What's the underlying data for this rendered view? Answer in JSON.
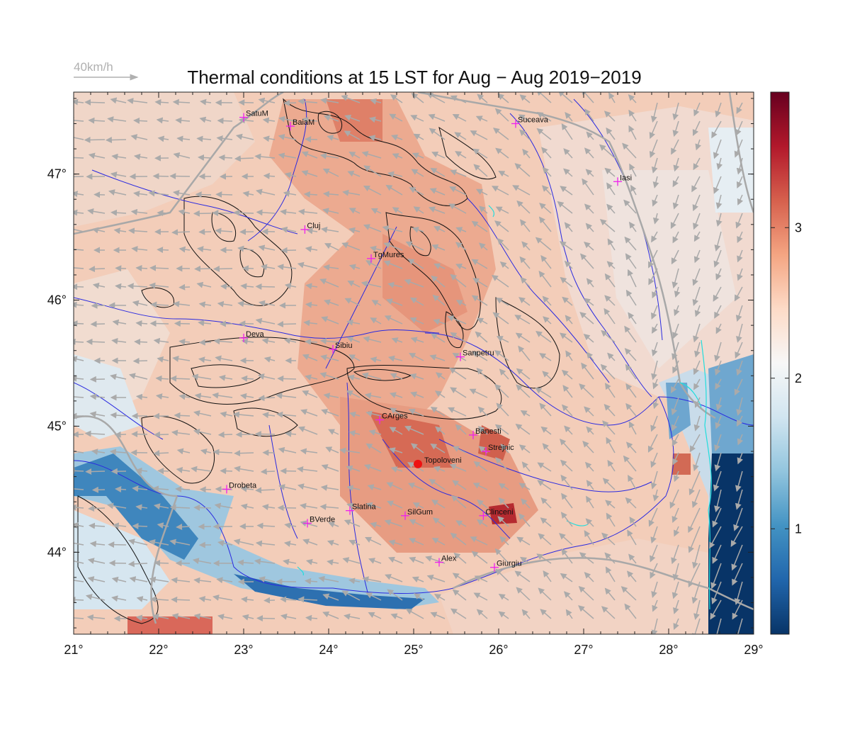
{
  "title": "Thermal conditions at 15 LST for Aug − Aug  2019−2019",
  "wind_scale": {
    "label": "40km/h",
    "color": "#b0b0b0"
  },
  "map": {
    "lon_range": [
      21,
      29
    ],
    "lat_range": [
      43.35,
      47.65
    ],
    "x_ticks": [
      {
        "value": 21,
        "label": "21°"
      },
      {
        "value": 22,
        "label": "22°"
      },
      {
        "value": 23,
        "label": "23°"
      },
      {
        "value": 24,
        "label": "24°"
      },
      {
        "value": 25,
        "label": "25°"
      },
      {
        "value": 26,
        "label": "26°"
      },
      {
        "value": 27,
        "label": "27°"
      },
      {
        "value": 28,
        "label": "28°"
      },
      {
        "value": 29,
        "label": "29°"
      }
    ],
    "y_ticks": [
      {
        "value": 44,
        "label": "44°"
      },
      {
        "value": 45,
        "label": "45°"
      },
      {
        "value": 46,
        "label": "46°"
      },
      {
        "value": 47,
        "label": "47°"
      }
    ],
    "colorbar": {
      "range": [
        0.3,
        3.9
      ],
      "ticks": [
        {
          "value": 1,
          "label": "1"
        },
        {
          "value": 2,
          "label": "2"
        },
        {
          "value": 3,
          "label": "3"
        }
      ],
      "colors": [
        "#083467",
        "#2166ac",
        "#4393c3",
        "#92c5de",
        "#d1e5f0",
        "#f7f7f7",
        "#fddbc7",
        "#f4a582",
        "#d6604d",
        "#b2182b",
        "#67001f"
      ]
    },
    "cities": [
      {
        "name": "SatuM",
        "lon": 23.0,
        "lat": 47.45
      },
      {
        "name": "BaiaM",
        "lon": 23.55,
        "lat": 47.38
      },
      {
        "name": "Suceava",
        "lon": 26.2,
        "lat": 47.4
      },
      {
        "name": "Iasi",
        "lon": 27.4,
        "lat": 46.94
      },
      {
        "name": "Cluj",
        "lon": 23.72,
        "lat": 46.56
      },
      {
        "name": "TgMures",
        "lon": 24.5,
        "lat": 46.33
      },
      {
        "name": "Deva",
        "lon": 23.0,
        "lat": 45.7
      },
      {
        "name": "Sibiu",
        "lon": 24.05,
        "lat": 45.61
      },
      {
        "name": "Sanpetru",
        "lon": 25.55,
        "lat": 45.55
      },
      {
        "name": "CArges",
        "lon": 24.6,
        "lat": 45.05
      },
      {
        "name": "Banesti",
        "lon": 25.7,
        "lat": 44.93
      },
      {
        "name": "Strejnic",
        "lon": 25.85,
        "lat": 44.8
      },
      {
        "name": "Drobeta",
        "lon": 22.8,
        "lat": 44.5
      },
      {
        "name": "Slatina",
        "lon": 24.25,
        "lat": 44.33
      },
      {
        "name": "SilGum",
        "lon": 24.9,
        "lat": 44.29
      },
      {
        "name": "Clinceni",
        "lon": 25.82,
        "lat": 44.29
      },
      {
        "name": "BVerde",
        "lon": 23.75,
        "lat": 44.23
      },
      {
        "name": "Alex",
        "lon": 25.3,
        "lat": 43.92
      },
      {
        "name": "Giurgiu",
        "lon": 25.95,
        "lat": 43.88
      }
    ],
    "highlight": {
      "name": "Topoloveni",
      "lon": 25.05,
      "lat": 44.7,
      "color": "#ee1111"
    }
  }
}
